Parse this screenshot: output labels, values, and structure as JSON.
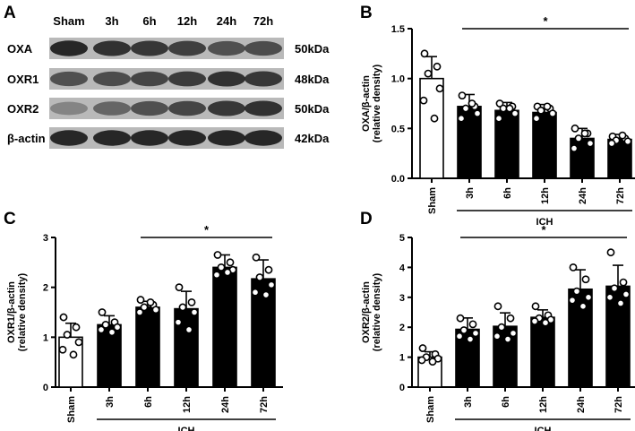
{
  "panels": {
    "A": "A",
    "B": "B",
    "C": "C",
    "D": "D"
  },
  "blot": {
    "lanes": [
      "Sham",
      "3h",
      "6h",
      "12h",
      "24h",
      "72h"
    ],
    "rows": [
      {
        "protein": "OXA",
        "mw": "50kDa",
        "intensity": [
          0.9,
          0.85,
          0.82,
          0.78,
          0.7,
          0.72
        ]
      },
      {
        "protein": "OXR1",
        "mw": "48kDa",
        "intensity": [
          0.7,
          0.72,
          0.75,
          0.8,
          0.85,
          0.82
        ]
      },
      {
        "protein": "OXR2",
        "mw": "50kDa",
        "intensity": [
          0.45,
          0.6,
          0.7,
          0.75,
          0.82,
          0.85
        ]
      },
      {
        "protein": "β-actin",
        "mw": "42kDa",
        "intensity": [
          0.9,
          0.9,
          0.9,
          0.9,
          0.9,
          0.9
        ]
      }
    ]
  },
  "chart_data": [
    {
      "panel": "B",
      "type": "bar",
      "categories": [
        "Sham",
        "3h",
        "6h",
        "12h",
        "24h",
        "72h"
      ],
      "values": [
        1.0,
        0.72,
        0.68,
        0.66,
        0.4,
        0.39
      ],
      "errors": [
        0.22,
        0.12,
        0.08,
        0.08,
        0.1,
        0.05
      ],
      "points": [
        [
          1.25,
          1.12,
          1.05,
          0.9,
          0.78,
          0.6
        ],
        [
          0.83,
          0.72,
          0.7,
          0.65,
          0.6,
          0.75
        ],
        [
          0.75,
          0.72,
          0.7,
          0.65,
          0.6,
          0.7
        ],
        [
          0.72,
          0.7,
          0.68,
          0.65,
          0.6,
          0.72
        ],
        [
          0.5,
          0.45,
          0.4,
          0.35,
          0.3,
          0.45
        ],
        [
          0.42,
          0.4,
          0.38,
          0.37,
          0.35,
          0.43
        ]
      ],
      "ylabel": [
        "OXA/β-actin",
        "(relative density)"
      ],
      "ylim": [
        0,
        1.5
      ],
      "yticks": [
        "0.0",
        "0.5",
        "1.0",
        "1.5"
      ],
      "group_label": "ICH",
      "significance": "*"
    },
    {
      "panel": "C",
      "type": "bar",
      "categories": [
        "Sham",
        "3h",
        "6h",
        "12h",
        "24h",
        "72h"
      ],
      "values": [
        1.0,
        1.25,
        1.6,
        1.57,
        2.4,
        2.17
      ],
      "errors": [
        0.28,
        0.18,
        0.12,
        0.35,
        0.25,
        0.38
      ],
      "points": [
        [
          1.4,
          1.2,
          1.05,
          0.9,
          0.75,
          0.65
        ],
        [
          1.5,
          1.3,
          1.25,
          1.2,
          1.15,
          1.1
        ],
        [
          1.75,
          1.65,
          1.6,
          1.55,
          1.5,
          1.7
        ],
        [
          2.0,
          1.7,
          1.6,
          1.5,
          1.3,
          1.15
        ],
        [
          2.65,
          2.5,
          2.4,
          2.35,
          2.25,
          2.3
        ],
        [
          2.6,
          2.35,
          2.2,
          2.05,
          1.9,
          1.85
        ]
      ],
      "ylabel": [
        "OXR1/β-actin",
        "(relative density)"
      ],
      "ylim": [
        0,
        3
      ],
      "yticks": [
        "0",
        "1",
        "2",
        "3"
      ],
      "group_label": "ICH",
      "significance": "*"
    },
    {
      "panel": "D",
      "type": "bar",
      "categories": [
        "Sham",
        "3h",
        "6h",
        "12h",
        "24h",
        "72h"
      ],
      "values": [
        1.0,
        1.93,
        2.03,
        2.33,
        3.27,
        3.37
      ],
      "errors": [
        0.18,
        0.38,
        0.45,
        0.25,
        0.65,
        0.7
      ],
      "points": [
        [
          1.3,
          1.1,
          1.0,
          0.95,
          0.9,
          0.85
        ],
        [
          2.3,
          2.1,
          1.9,
          1.8,
          1.7,
          1.6
        ],
        [
          2.7,
          2.3,
          2.0,
          1.8,
          1.7,
          1.6
        ],
        [
          2.7,
          2.4,
          2.3,
          2.25,
          2.2,
          2.15
        ],
        [
          4.0,
          3.6,
          3.2,
          3.0,
          2.9,
          2.7
        ],
        [
          4.5,
          3.5,
          3.3,
          3.1,
          3.0,
          2.8
        ]
      ],
      "ylabel": [
        "OXR2/β-actin",
        "(relative density)"
      ],
      "ylim": [
        0,
        5
      ],
      "yticks": [
        "0",
        "1",
        "2",
        "3",
        "4",
        "5"
      ],
      "group_label": "ICH",
      "significance": "*"
    }
  ]
}
